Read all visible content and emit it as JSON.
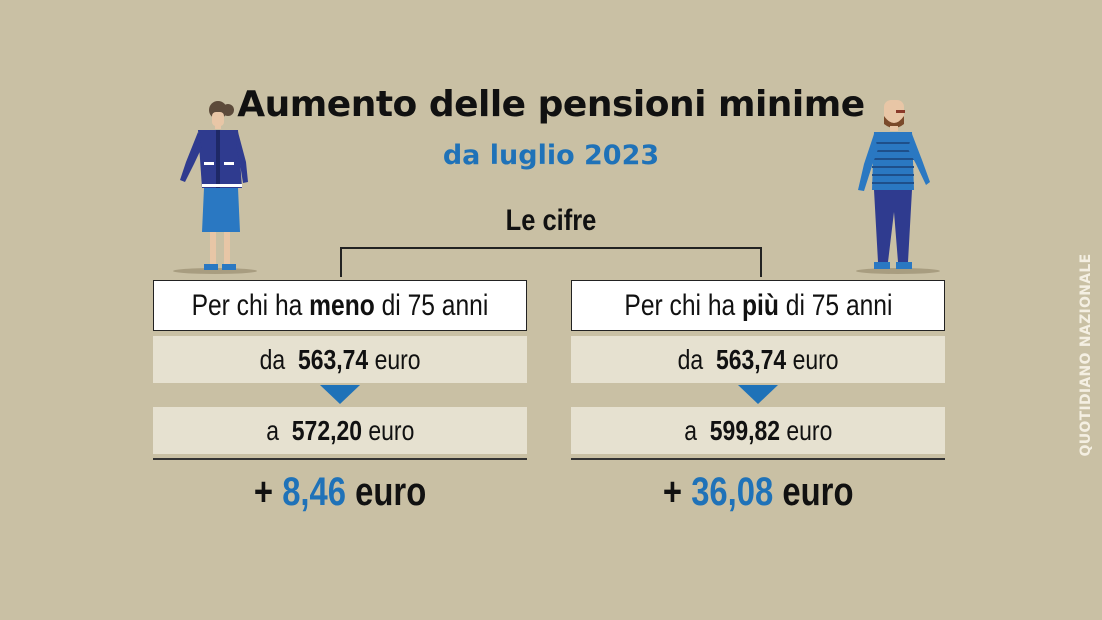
{
  "header": {
    "title": "Aumento delle pensioni minime",
    "subtitle": "da luglio 2023",
    "section_label": "Le cifre"
  },
  "columns": [
    {
      "heading_pre": "Per chi ha ",
      "heading_bold": "meno",
      "heading_post": " di 75 anni",
      "from_prefix": "da",
      "from_value": "563,74",
      "from_unit": "euro",
      "to_prefix": "a",
      "to_value": "572,20",
      "to_unit": "euro",
      "delta_sign": "+",
      "delta_value": "8,46",
      "delta_unit": "euro"
    },
    {
      "heading_pre": "Per chi ha ",
      "heading_bold": "più",
      "heading_post": " di 75 anni",
      "from_prefix": "da",
      "from_value": "563,74",
      "from_unit": "euro",
      "to_prefix": "a",
      "to_value": "599,82",
      "to_unit": "euro",
      "delta_sign": "+",
      "delta_value": "36,08",
      "delta_unit": "euro"
    }
  ],
  "credit": "QUOTIDIANO NAZIONALE",
  "colors": {
    "background": "#c9c0a4",
    "accent_blue": "#1f72b8",
    "box_fill": "#e6e1d0"
  },
  "icons": [
    "woman-figure-icon",
    "man-figure-icon",
    "down-arrow-icon"
  ]
}
